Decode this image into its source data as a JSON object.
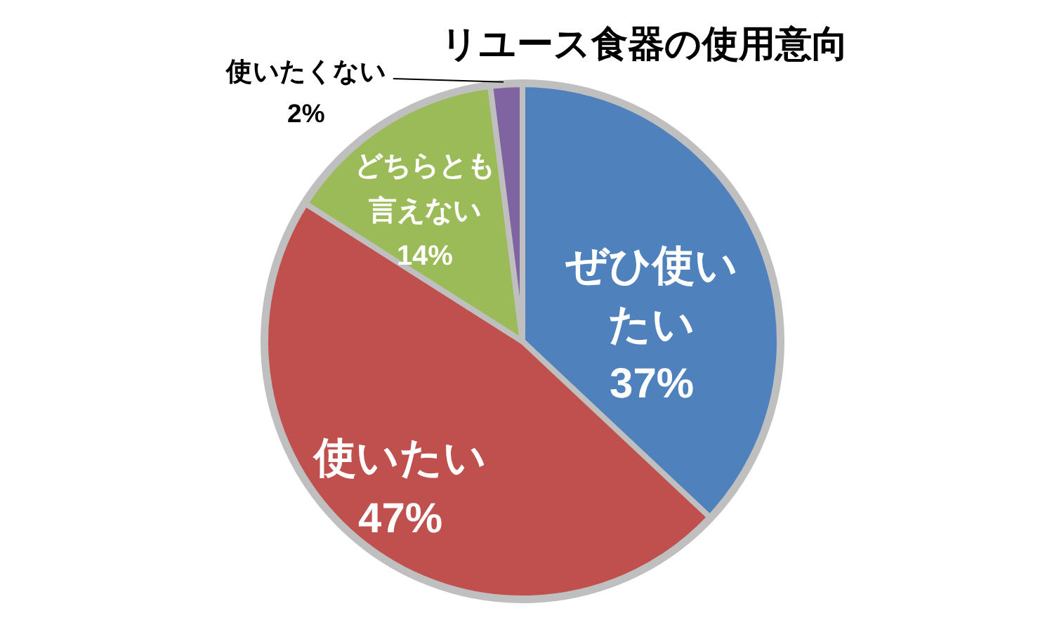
{
  "chart_data": {
    "type": "pie",
    "title": "リユース食器の使用意向",
    "categories": [
      "ぜひ使いたい",
      "使いたい",
      "どちらとも言えない",
      "使いたくない"
    ],
    "values": [
      37,
      47,
      14,
      2
    ],
    "colors": [
      "#4f81bd",
      "#c0504d",
      "#9bbb59",
      "#8064a2"
    ],
    "value_labels": [
      "37%",
      "47%",
      "14%",
      "2%"
    ]
  }
}
